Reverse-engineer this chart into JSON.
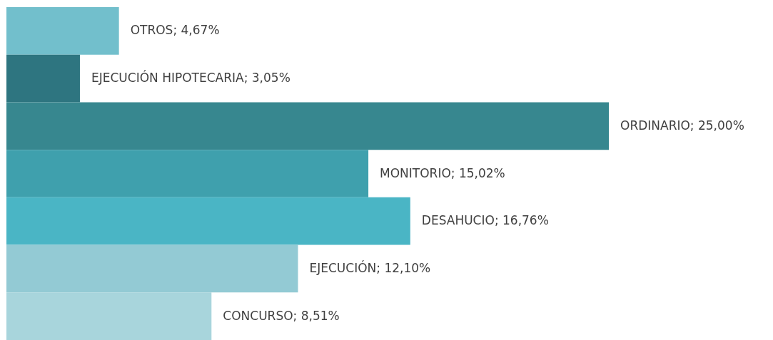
{
  "chart_data": {
    "type": "bar",
    "orientation": "horizontal",
    "categories": [
      null,
      null,
      null,
      null,
      null,
      null,
      null
    ],
    "values": [
      4.67,
      3.05,
      25.0,
      15.02,
      16.76,
      12.1,
      8.51
    ],
    "colors": [
      "#72bfcc",
      "#2e7580",
      "#37878f",
      "#3fa0ad",
      "#4ab5c5",
      "#93cad4",
      "#a8d5dc"
    ],
    "value_labels": [
      "OTROS; 4,67%",
      "EJECUCIÓN HIPOTECARIA; 3,05%",
      "ORDINARIO; 25,00%",
      "MONITORIO; 15,02%",
      "DESAHUCIO; 16,76%",
      "EJECUCIÓN; 12,10%",
      "CONCURSO; 8,51%"
    ]
  }
}
